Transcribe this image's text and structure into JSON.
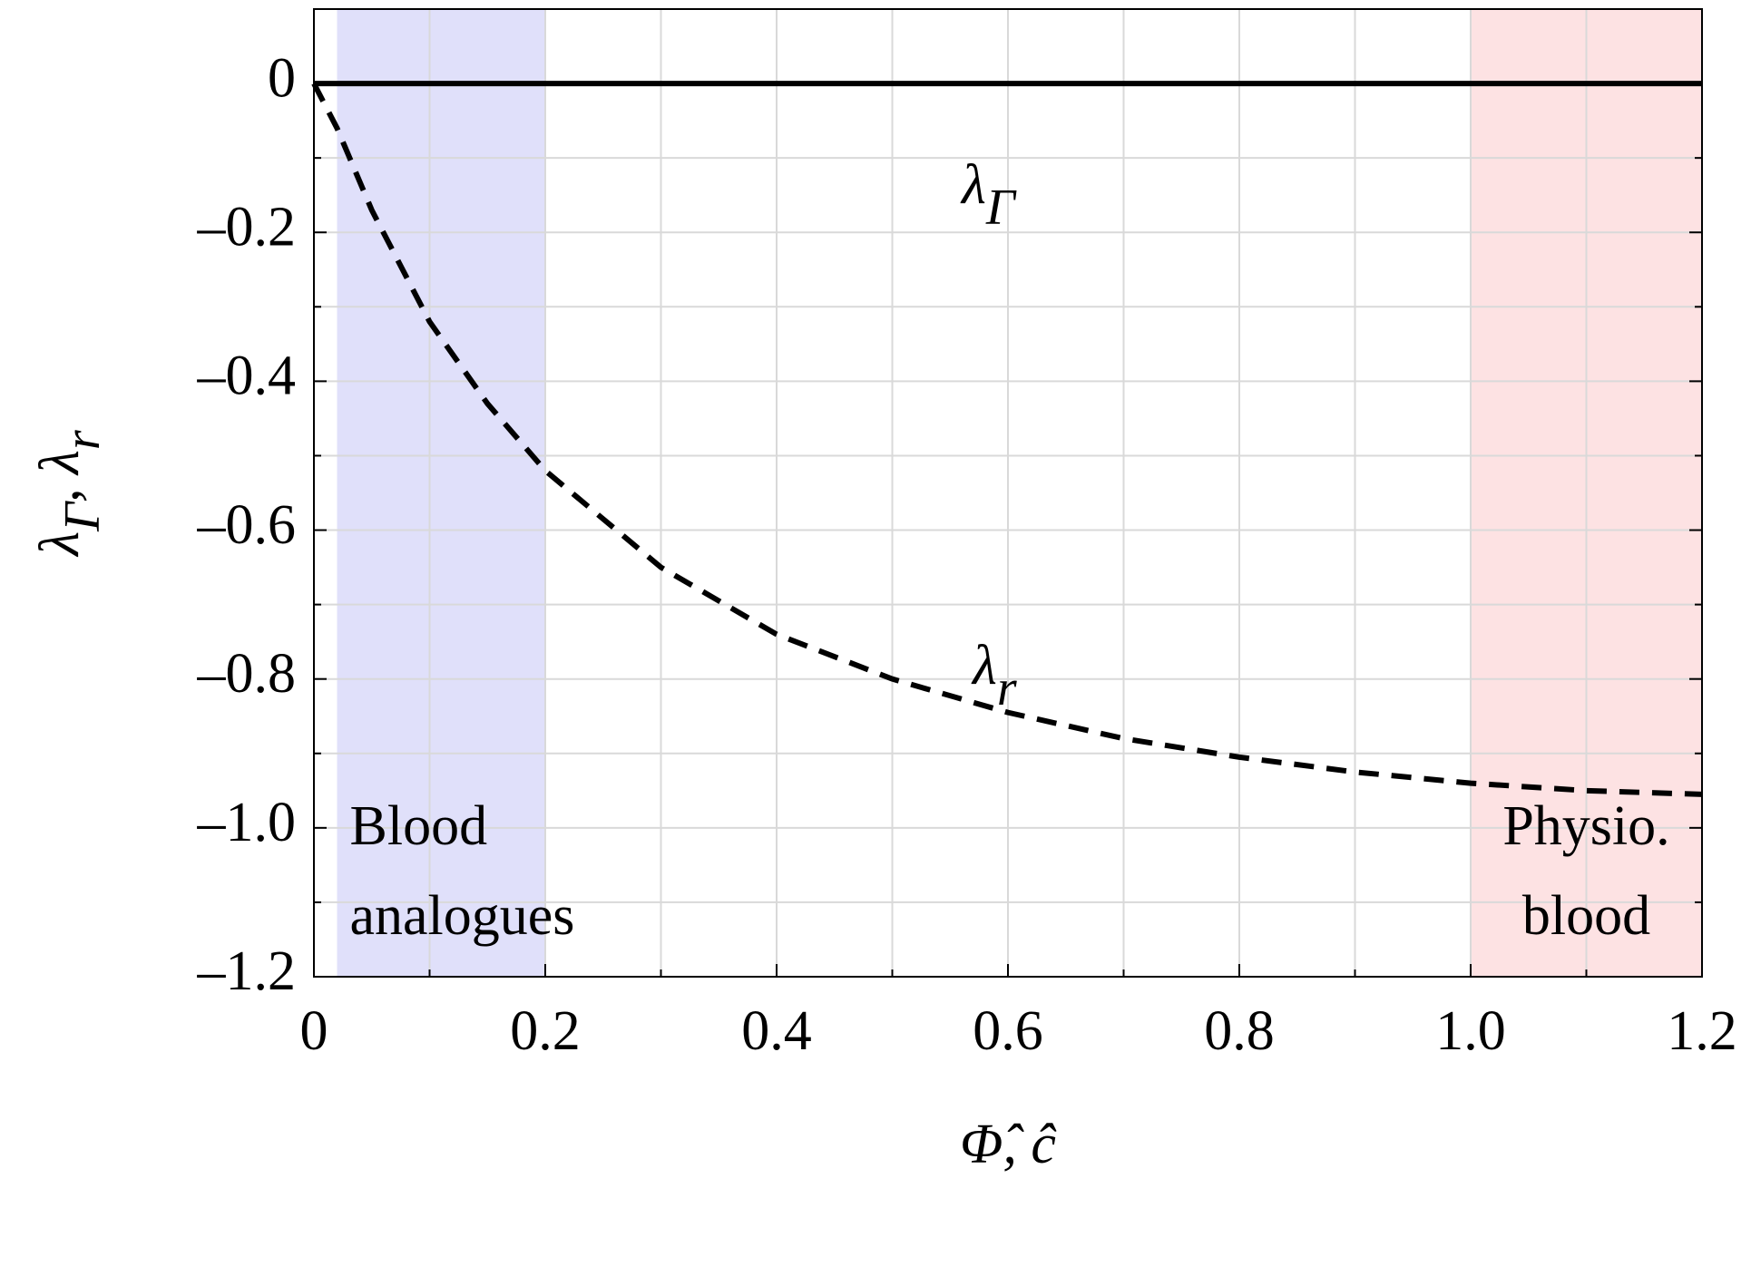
{
  "chart_data": {
    "type": "line",
    "xlabel": "Φ̂, ĉ",
    "ylabel": [
      {
        "text": "λ"
      },
      {
        "text": "Γ",
        "sub": true
      },
      {
        "text": ", λ"
      },
      {
        "text": "r",
        "sub": true
      }
    ],
    "xlim": [
      0,
      1.2
    ],
    "ylim": [
      -1.2,
      0.1
    ],
    "xticks": [
      0,
      0.2,
      0.4,
      0.6,
      0.8,
      {
        "value": 1.0,
        "label": "1.0"
      },
      1.2
    ],
    "yticks": [
      0,
      {
        "value": -0.2,
        "label": "–0.2"
      },
      {
        "value": -0.4,
        "label": "–0.4"
      },
      {
        "value": -0.6,
        "label": "–0.6"
      },
      {
        "value": -0.8,
        "label": "–0.8"
      },
      {
        "value": -1.0,
        "label": "–1.0"
      },
      {
        "value": -1.2,
        "label": "–1.2"
      }
    ],
    "xminorticks": [
      0.1,
      0.3,
      0.5,
      0.7,
      0.9,
      1.1
    ],
    "yminorticks": [
      -0.1,
      -0.3,
      -0.5,
      -0.7,
      -0.9,
      -1.1
    ],
    "grid": true,
    "regions": [
      {
        "x": [
          0.02,
          0.2
        ],
        "color": "#e0e0fa",
        "label": [
          "Blood",
          "analogues"
        ],
        "align": "left"
      },
      {
        "x": [
          1.0,
          1.2
        ],
        "color": "#fde2e3",
        "label": [
          "Physio.",
          "blood"
        ],
        "align": "center"
      }
    ],
    "series": [
      {
        "name": "λ",
        "subscript": "Γ",
        "color": "#000000",
        "dash": false,
        "x": [
          0,
          1.2
        ],
        "values": [
          0,
          0
        ]
      },
      {
        "name": "λ",
        "subscript": "r",
        "color": "#000000",
        "dash": true,
        "x": [
          0,
          0.02,
          0.05,
          0.1,
          0.15,
          0.2,
          0.3,
          0.4,
          0.5,
          0.6,
          0.7,
          0.8,
          0.9,
          1.0,
          1.1,
          1.2
        ],
        "values": [
          0,
          -0.06,
          -0.17,
          -0.32,
          -0.43,
          -0.52,
          -0.65,
          -0.74,
          -0.8,
          -0.845,
          -0.88,
          -0.905,
          -0.925,
          -0.94,
          -0.95,
          -0.955
        ]
      }
    ]
  }
}
